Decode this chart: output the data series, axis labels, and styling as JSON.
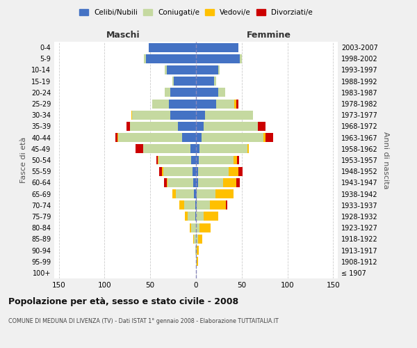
{
  "age_groups": [
    "100+",
    "95-99",
    "90-94",
    "85-89",
    "80-84",
    "75-79",
    "70-74",
    "65-69",
    "60-64",
    "55-59",
    "50-54",
    "45-49",
    "40-44",
    "35-39",
    "30-34",
    "25-29",
    "20-24",
    "15-19",
    "10-14",
    "5-9",
    "0-4"
  ],
  "birth_years": [
    "≤ 1907",
    "1908-1912",
    "1913-1917",
    "1918-1922",
    "1923-1927",
    "1928-1932",
    "1933-1937",
    "1938-1942",
    "1943-1947",
    "1948-1952",
    "1953-1957",
    "1958-1962",
    "1963-1967",
    "1968-1972",
    "1973-1977",
    "1978-1982",
    "1983-1987",
    "1988-1992",
    "1993-1997",
    "1998-2002",
    "2003-2007"
  ],
  "males": {
    "celibi": [
      0,
      0,
      0,
      0,
      0,
      1,
      1,
      2,
      3,
      4,
      5,
      6,
      15,
      20,
      28,
      30,
      28,
      24,
      32,
      55,
      52
    ],
    "coniugati": [
      0,
      0,
      1,
      2,
      5,
      8,
      12,
      20,
      28,
      32,
      36,
      52,
      70,
      52,
      42,
      18,
      6,
      2,
      2,
      2,
      0
    ],
    "vedovi": [
      0,
      0,
      0,
      1,
      2,
      3,
      5,
      4,
      1,
      1,
      1,
      0,
      1,
      0,
      1,
      0,
      0,
      0,
      0,
      0,
      0
    ],
    "divorziati": [
      0,
      0,
      0,
      0,
      0,
      0,
      0,
      0,
      3,
      3,
      1,
      8,
      2,
      4,
      0,
      0,
      0,
      0,
      0,
      0,
      0
    ]
  },
  "females": {
    "nubili": [
      0,
      0,
      0,
      0,
      0,
      0,
      1,
      1,
      2,
      2,
      3,
      4,
      6,
      8,
      10,
      22,
      24,
      20,
      24,
      48,
      46
    ],
    "coniugate": [
      0,
      1,
      1,
      2,
      4,
      8,
      14,
      20,
      28,
      34,
      38,
      52,
      68,
      60,
      52,
      20,
      8,
      2,
      2,
      2,
      0
    ],
    "vedove": [
      0,
      1,
      2,
      5,
      12,
      16,
      18,
      20,
      14,
      10,
      4,
      2,
      2,
      0,
      0,
      2,
      0,
      0,
      0,
      0,
      0
    ],
    "divorziate": [
      0,
      0,
      0,
      0,
      0,
      0,
      1,
      0,
      4,
      5,
      2,
      0,
      8,
      8,
      0,
      2,
      0,
      0,
      0,
      0,
      0
    ]
  },
  "colors": {
    "celibi": "#4472c4",
    "coniugati": "#c5d9a0",
    "vedovi": "#ffc000",
    "divorziati": "#cc0000"
  },
  "xlim": 155,
  "xticks": [
    150,
    100,
    50,
    0,
    50,
    100,
    150
  ],
  "title": "Popolazione per età, sesso e stato civile - 2008",
  "subtitle": "COMUNE DI MEDUNA DI LIVENZA (TV) - Dati ISTAT 1° gennaio 2008 - Elaborazione TUTTAITALIA.IT",
  "xlabel_left": "Maschi",
  "xlabel_right": "Femmine",
  "ylabel_left": "Fasce di età",
  "ylabel_right": "Anni di nascita",
  "legend_labels": [
    "Celibi/Nubili",
    "Coniugati/e",
    "Vedovi/e",
    "Divorziati/e"
  ],
  "bg_color": "#f0f0f0",
  "plot_bg": "#ffffff",
  "grid_color": "#cccccc"
}
